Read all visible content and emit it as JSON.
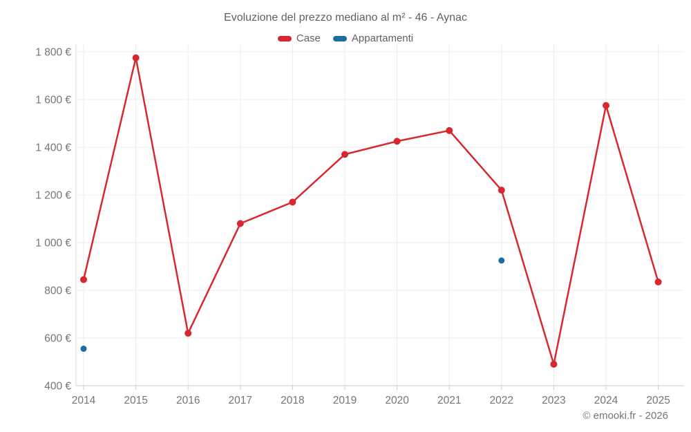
{
  "chart_data": {
    "type": "line",
    "title": "Evoluzione del prezzo mediano al m² - 46 - Aynac",
    "categories": [
      2014,
      2015,
      2016,
      2017,
      2018,
      2019,
      2020,
      2021,
      2022,
      2023,
      2024,
      2025
    ],
    "series": [
      {
        "name": "Case",
        "type": "line",
        "color": "#d7282f",
        "values": [
          845,
          1775,
          620,
          1080,
          1170,
          1370,
          1425,
          1470,
          1220,
          490,
          1575,
          835
        ]
      },
      {
        "name": "Appartamenti",
        "type": "scatter",
        "color": "#1b6ea0",
        "values": [
          555,
          null,
          null,
          null,
          null,
          null,
          null,
          null,
          925,
          null,
          null,
          null
        ]
      }
    ],
    "ylim": [
      400,
      1800
    ],
    "ytick_step": 200,
    "unit": "€",
    "xlabel": "",
    "ylabel": "",
    "grid": "on",
    "legend_position": "top",
    "footer": "© emooki.fr - 2026",
    "colors": {
      "grid": "#ededed",
      "axis": "#cccccc",
      "tick_label": "#757575",
      "title_text": "#5f5f5f"
    }
  }
}
